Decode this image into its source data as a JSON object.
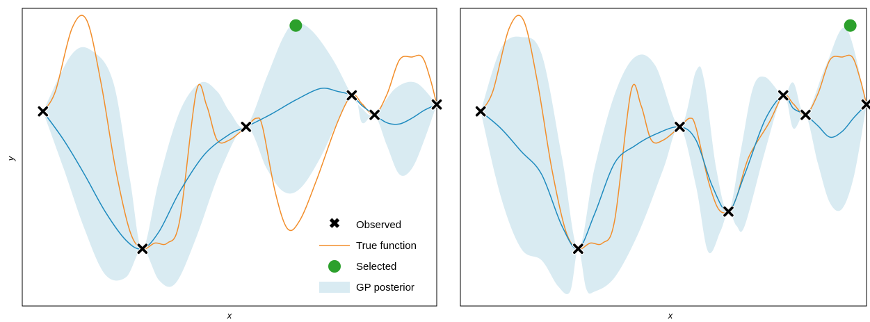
{
  "chart_data": [
    {
      "type": "line",
      "xlabel": "x",
      "ylabel": "y",
      "xlim": [
        0,
        1
      ],
      "ylim": [
        -2.9,
        2.3
      ],
      "ticks": "hidden",
      "grid": false,
      "colors": {
        "true_function": "#f28e2b",
        "gp_mean": "#1f8bbf",
        "gp_band": "#d9ebf2",
        "observed": "#000000",
        "selected": "#2ca02c"
      },
      "observed": [
        {
          "x": 0.05,
          "y": 0.5
        },
        {
          "x": 0.29,
          "y": -1.9
        },
        {
          "x": 0.54,
          "y": 0.23
        },
        {
          "x": 0.795,
          "y": 0.78
        },
        {
          "x": 0.85,
          "y": 0.44
        },
        {
          "x": 1.0,
          "y": 0.62
        }
      ],
      "selected": {
        "x": 0.66,
        "y": 2.0
      },
      "true_function": [
        [
          0.05,
          0.5
        ],
        [
          0.08,
          0.85
        ],
        [
          0.12,
          1.95
        ],
        [
          0.155,
          2.1
        ],
        [
          0.19,
          1.0
        ],
        [
          0.225,
          -0.5
        ],
        [
          0.26,
          -1.6
        ],
        [
          0.29,
          -1.9
        ],
        [
          0.32,
          -1.8
        ],
        [
          0.35,
          -1.8
        ],
        [
          0.38,
          -1.4
        ],
        [
          0.42,
          0.85
        ],
        [
          0.445,
          0.6
        ],
        [
          0.47,
          0.0
        ],
        [
          0.5,
          0.0
        ],
        [
          0.54,
          0.23
        ],
        [
          0.565,
          0.38
        ],
        [
          0.58,
          0.22
        ],
        [
          0.61,
          -0.9
        ],
        [
          0.64,
          -1.55
        ],
        [
          0.67,
          -1.4
        ],
        [
          0.71,
          -0.7
        ],
        [
          0.76,
          0.3
        ],
        [
          0.795,
          0.78
        ],
        [
          0.82,
          0.63
        ],
        [
          0.85,
          0.44
        ],
        [
          0.88,
          0.8
        ],
        [
          0.91,
          1.4
        ],
        [
          0.94,
          1.45
        ],
        [
          0.965,
          1.45
        ],
        [
          0.985,
          1.05
        ],
        [
          1.0,
          0.62
        ]
      ],
      "gp_mean": [
        [
          0.05,
          0.5
        ],
        [
          0.1,
          0.0
        ],
        [
          0.15,
          -0.6
        ],
        [
          0.2,
          -1.25
        ],
        [
          0.25,
          -1.75
        ],
        [
          0.29,
          -1.9
        ],
        [
          0.33,
          -1.6
        ],
        [
          0.38,
          -0.9
        ],
        [
          0.44,
          -0.25
        ],
        [
          0.5,
          0.1
        ],
        [
          0.54,
          0.23
        ],
        [
          0.6,
          0.45
        ],
        [
          0.66,
          0.7
        ],
        [
          0.72,
          0.9
        ],
        [
          0.76,
          0.85
        ],
        [
          0.795,
          0.78
        ],
        [
          0.82,
          0.6
        ],
        [
          0.85,
          0.44
        ],
        [
          0.88,
          0.3
        ],
        [
          0.91,
          0.28
        ],
        [
          0.94,
          0.38
        ],
        [
          0.97,
          0.52
        ],
        [
          1.0,
          0.62
        ]
      ],
      "gp_band_upper": [
        [
          0.05,
          0.5
        ],
        [
          0.12,
          1.5
        ],
        [
          0.17,
          1.55
        ],
        [
          0.22,
          1.0
        ],
        [
          0.26,
          -0.7
        ],
        [
          0.29,
          -1.9
        ],
        [
          0.33,
          -0.7
        ],
        [
          0.38,
          0.5
        ],
        [
          0.43,
          1.0
        ],
        [
          0.47,
          0.85
        ],
        [
          0.5,
          0.5
        ],
        [
          0.54,
          0.23
        ],
        [
          0.59,
          1.1
        ],
        [
          0.63,
          1.8
        ],
        [
          0.66,
          2.05
        ],
        [
          0.7,
          1.9
        ],
        [
          0.75,
          1.4
        ],
        [
          0.795,
          0.78
        ],
        [
          0.82,
          0.55
        ],
        [
          0.85,
          0.44
        ],
        [
          0.9,
          0.9
        ],
        [
          0.95,
          1.0
        ],
        [
          1.0,
          0.62
        ]
      ],
      "gp_band_lower": [
        [
          0.05,
          0.5
        ],
        [
          0.1,
          -0.5
        ],
        [
          0.15,
          -1.55
        ],
        [
          0.2,
          -2.35
        ],
        [
          0.25,
          -2.4
        ],
        [
          0.29,
          -1.9
        ],
        [
          0.33,
          -2.45
        ],
        [
          0.37,
          -2.5
        ],
        [
          0.42,
          -1.7
        ],
        [
          0.48,
          -0.5
        ],
        [
          0.54,
          0.23
        ],
        [
          0.59,
          -0.5
        ],
        [
          0.63,
          -0.9
        ],
        [
          0.67,
          -0.85
        ],
        [
          0.72,
          -0.3
        ],
        [
          0.795,
          0.78
        ],
        [
          0.82,
          0.3
        ],
        [
          0.85,
          0.44
        ],
        [
          0.88,
          -0.1
        ],
        [
          0.91,
          -0.6
        ],
        [
          0.94,
          -0.5
        ],
        [
          0.97,
          0.0
        ],
        [
          1.0,
          0.62
        ]
      ],
      "legend": {
        "position": "lower-right",
        "entries": [
          {
            "label": "Observed",
            "kind": "marker"
          },
          {
            "label": "True function",
            "kind": "line"
          },
          {
            "label": "Selected",
            "kind": "dot"
          },
          {
            "label": "GP posterior",
            "kind": "band"
          }
        ]
      }
    },
    {
      "type": "line",
      "xlabel": "x",
      "ylabel": "",
      "xlim": [
        0,
        1
      ],
      "ylim": [
        -2.9,
        2.3
      ],
      "ticks": "hidden",
      "grid": false,
      "colors": {
        "true_function": "#f28e2b",
        "gp_mean": "#1f8bbf",
        "gp_band": "#d9ebf2",
        "observed": "#000000",
        "selected": "#2ca02c"
      },
      "observed": [
        {
          "x": 0.05,
          "y": 0.5
        },
        {
          "x": 0.29,
          "y": -1.9
        },
        {
          "x": 0.54,
          "y": 0.23
        },
        {
          "x": 0.66,
          "y": -1.25
        },
        {
          "x": 0.795,
          "y": 0.78
        },
        {
          "x": 0.85,
          "y": 0.44
        },
        {
          "x": 1.0,
          "y": 0.62
        }
      ],
      "selected": {
        "x": 0.96,
        "y": 2.0
      },
      "true_function": [
        [
          0.05,
          0.5
        ],
        [
          0.08,
          0.85
        ],
        [
          0.12,
          1.95
        ],
        [
          0.155,
          2.1
        ],
        [
          0.19,
          1.0
        ],
        [
          0.225,
          -0.5
        ],
        [
          0.26,
          -1.6
        ],
        [
          0.29,
          -1.9
        ],
        [
          0.32,
          -1.8
        ],
        [
          0.35,
          -1.8
        ],
        [
          0.38,
          -1.4
        ],
        [
          0.42,
          0.85
        ],
        [
          0.445,
          0.6
        ],
        [
          0.47,
          0.0
        ],
        [
          0.5,
          0.0
        ],
        [
          0.54,
          0.23
        ],
        [
          0.565,
          0.38
        ],
        [
          0.58,
          0.22
        ],
        [
          0.61,
          -0.7
        ],
        [
          0.635,
          -1.2
        ],
        [
          0.66,
          -1.25
        ],
        [
          0.68,
          -1.0
        ],
        [
          0.71,
          -0.3
        ],
        [
          0.76,
          0.3
        ],
        [
          0.795,
          0.78
        ],
        [
          0.82,
          0.63
        ],
        [
          0.85,
          0.44
        ],
        [
          0.88,
          0.8
        ],
        [
          0.91,
          1.4
        ],
        [
          0.94,
          1.45
        ],
        [
          0.965,
          1.45
        ],
        [
          0.985,
          1.05
        ],
        [
          1.0,
          0.62
        ]
      ],
      "gp_mean": [
        [
          0.05,
          0.5
        ],
        [
          0.1,
          0.2
        ],
        [
          0.15,
          -0.2
        ],
        [
          0.2,
          -0.6
        ],
        [
          0.25,
          -1.5
        ],
        [
          0.29,
          -1.9
        ],
        [
          0.33,
          -1.3
        ],
        [
          0.38,
          -0.4
        ],
        [
          0.43,
          -0.1
        ],
        [
          0.48,
          0.1
        ],
        [
          0.54,
          0.23
        ],
        [
          0.58,
          0.0
        ],
        [
          0.62,
          -0.8
        ],
        [
          0.66,
          -1.25
        ],
        [
          0.7,
          -0.6
        ],
        [
          0.75,
          0.35
        ],
        [
          0.795,
          0.78
        ],
        [
          0.82,
          0.55
        ],
        [
          0.85,
          0.44
        ],
        [
          0.88,
          0.25
        ],
        [
          0.91,
          0.05
        ],
        [
          0.94,
          0.15
        ],
        [
          0.97,
          0.4
        ],
        [
          1.0,
          0.62
        ]
      ],
      "gp_band_upper": [
        [
          0.05,
          0.5
        ],
        [
          0.1,
          1.6
        ],
        [
          0.15,
          1.8
        ],
        [
          0.2,
          1.5
        ],
        [
          0.25,
          -0.3
        ],
        [
          0.29,
          -1.9
        ],
        [
          0.33,
          -0.5
        ],
        [
          0.38,
          0.8
        ],
        [
          0.43,
          1.45
        ],
        [
          0.48,
          1.3
        ],
        [
          0.54,
          0.23
        ],
        [
          0.58,
          1.2
        ],
        [
          0.6,
          1.05
        ],
        [
          0.63,
          -0.5
        ],
        [
          0.66,
          -1.25
        ],
        [
          0.69,
          -0.2
        ],
        [
          0.72,
          0.9
        ],
        [
          0.75,
          1.1
        ],
        [
          0.795,
          0.78
        ],
        [
          0.82,
          1.0
        ],
        [
          0.85,
          0.44
        ],
        [
          0.9,
          1.3
        ],
        [
          0.95,
          1.95
        ],
        [
          1.0,
          0.62
        ]
      ],
      "gp_band_lower": [
        [
          0.05,
          0.5
        ],
        [
          0.1,
          -1.0
        ],
        [
          0.15,
          -1.9
        ],
        [
          0.2,
          -2.1
        ],
        [
          0.24,
          -2.55
        ],
        [
          0.27,
          -2.65
        ],
        [
          0.29,
          -1.9
        ],
        [
          0.31,
          -2.6
        ],
        [
          0.33,
          -2.65
        ],
        [
          0.38,
          -2.4
        ],
        [
          0.44,
          -1.6
        ],
        [
          0.5,
          -0.5
        ],
        [
          0.54,
          0.23
        ],
        [
          0.58,
          -0.8
        ],
        [
          0.61,
          -1.95
        ],
        [
          0.64,
          -1.6
        ],
        [
          0.66,
          -1.25
        ],
        [
          0.68,
          -1.5
        ],
        [
          0.7,
          -1.5
        ],
        [
          0.75,
          -0.2
        ],
        [
          0.795,
          0.78
        ],
        [
          0.82,
          0.2
        ],
        [
          0.85,
          0.44
        ],
        [
          0.88,
          -0.4
        ],
        [
          0.91,
          -1.1
        ],
        [
          0.94,
          -1.2
        ],
        [
          0.97,
          -0.6
        ],
        [
          1.0,
          0.62
        ]
      ]
    }
  ]
}
